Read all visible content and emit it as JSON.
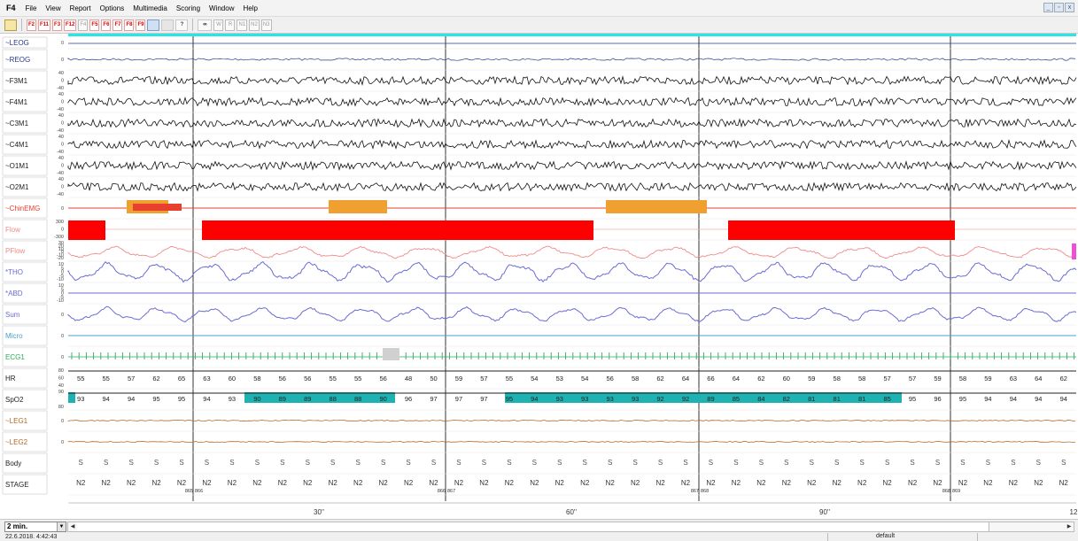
{
  "app": {
    "name": "F4"
  },
  "menu": [
    "File",
    "View",
    "Report",
    "Options",
    "Multimedia",
    "Scoring",
    "Window",
    "Help"
  ],
  "window_controls": [
    "_",
    "▫",
    "x"
  ],
  "toolbar": {
    "fkeys": [
      "F2",
      "F11",
      "F3",
      "F12",
      "F4",
      "F5",
      "F6",
      "F7",
      "F8",
      "F9"
    ],
    "stage_buttons": [
      "W",
      "R",
      "N1",
      "N2",
      "N3"
    ]
  },
  "channels": [
    {
      "label": "~LEOG",
      "color": "#2b3a8c",
      "scale": [
        "0"
      ]
    },
    {
      "label": "~REOG",
      "color": "#2b3a8c",
      "scale": [
        "0"
      ]
    },
    {
      "label": "~F3M1",
      "color": "#222222",
      "scale": [
        "40",
        "0",
        "-40"
      ]
    },
    {
      "label": "~F4M1",
      "color": "#222222",
      "scale": [
        "40",
        "0",
        "-40"
      ]
    },
    {
      "label": "~C3M1",
      "color": "#222222",
      "scale": [
        "40",
        "0",
        "-40"
      ]
    },
    {
      "label": "~C4M1",
      "color": "#222222",
      "scale": [
        "40",
        "0",
        "-40"
      ]
    },
    {
      "label": "~O1M1",
      "color": "#222222",
      "scale": [
        "40",
        "0",
        "-40"
      ]
    },
    {
      "label": "~O2M1",
      "color": "#222222",
      "scale": [
        "40",
        "0",
        "-40"
      ]
    },
    {
      "label": "~ChinEMG",
      "color": "#e8402e",
      "scale": [
        "0"
      ]
    },
    {
      "label": "Flow",
      "color": "#f08a8a",
      "scale": [
        "300",
        "0",
        "-300"
      ]
    },
    {
      "label": "PFlow",
      "color": "#f08a8a",
      "scale": [
        "30",
        "20",
        "10",
        "0",
        "-10",
        "-20"
      ]
    },
    {
      "label": "*THO",
      "color": "#6b6bd6",
      "scale": [
        "10",
        "5",
        "0",
        "-5",
        "-10"
      ]
    },
    {
      "label": "*ABD",
      "color": "#6b6bd6",
      "scale": [
        "10",
        "5",
        "0",
        "-5",
        "-10"
      ]
    },
    {
      "label": "Sum",
      "color": "#6b6bd6",
      "scale": [
        "0"
      ]
    },
    {
      "label": "Micro",
      "color": "#4aa0d0",
      "scale": [
        "0"
      ]
    },
    {
      "label": "ECG1",
      "color": "#2bab5c",
      "scale": [
        "0"
      ]
    },
    {
      "label": "HR",
      "color": "#222222",
      "scale": [
        "80",
        "60",
        "40"
      ]
    },
    {
      "label": "SpO2",
      "color": "#222222",
      "scale": [
        "90",
        "80"
      ]
    },
    {
      "label": "~LEG1",
      "color": "#b36a2a",
      "scale": [
        "0"
      ]
    },
    {
      "label": "~LEG2",
      "color": "#b36a2a",
      "scale": [
        "0"
      ]
    },
    {
      "label": "Body",
      "color": "#222222",
      "scale": []
    },
    {
      "label": "STAGE",
      "color": "#222222",
      "scale": []
    }
  ],
  "hr_values": [
    "55",
    "55",
    "57",
    "62",
    "65",
    "63",
    "60",
    "58",
    "56",
    "56",
    "55",
    "55",
    "56",
    "48",
    "50",
    "59",
    "57",
    "55",
    "54",
    "53",
    "54",
    "56",
    "58",
    "62",
    "64",
    "66",
    "64",
    "62",
    "60",
    "59",
    "58",
    "58",
    "57",
    "57",
    "59",
    "58",
    "59",
    "63",
    "64",
    "62"
  ],
  "spo2_values": [
    "93",
    "94",
    "94",
    "95",
    "95",
    "94",
    "93",
    "90",
    "89",
    "89",
    "88",
    "88",
    "90",
    "96",
    "97",
    "97",
    "97",
    "95",
    "94",
    "93",
    "93",
    "93",
    "93",
    "92",
    "92",
    "89",
    "85",
    "84",
    "82",
    "81",
    "81",
    "81",
    "85",
    "95",
    "96",
    "95",
    "94",
    "94",
    "94",
    "94"
  ],
  "body_positions": [
    "S",
    "S",
    "S",
    "S",
    "S",
    "S",
    "S",
    "S",
    "S",
    "S",
    "S",
    "S",
    "S",
    "S",
    "S",
    "S",
    "S",
    "S",
    "S",
    "S",
    "S",
    "S",
    "S",
    "S",
    "S",
    "S",
    "S",
    "S",
    "S",
    "S",
    "S",
    "S",
    "S",
    "S",
    "S",
    "S",
    "S",
    "S",
    "S",
    "S"
  ],
  "stage_labels": [
    "N2",
    "N2",
    "N2",
    "N2",
    "N2",
    "N2",
    "N2",
    "N2",
    "N2",
    "N2",
    "N2",
    "N2",
    "N2",
    "N2",
    "N2",
    "N2",
    "N2",
    "N2",
    "N2",
    "N2",
    "N2",
    "N2",
    "N2",
    "N2",
    "N2",
    "N2",
    "N2",
    "N2",
    "N2",
    "N2",
    "N2",
    "N2",
    "N2",
    "N2",
    "N2",
    "N2",
    "N2",
    "N2",
    "N2",
    "N2"
  ],
  "epoch_numbers": [
    "865",
    "866",
    "866",
    "867",
    "867",
    "868",
    "868",
    "869"
  ],
  "time_axis": [
    "30''",
    "60''",
    "90''",
    "12"
  ],
  "zoom": "2 min.",
  "datetime": "22.6.2018. 4:42:43",
  "profile": "default",
  "colors": {
    "flow_bar": "#ff0000",
    "emg_marker": "#f0a030",
    "spo2_band": "#1fb2b2",
    "top_bar": "#29e6e6",
    "pflow_marker": "#ee4fd8"
  }
}
